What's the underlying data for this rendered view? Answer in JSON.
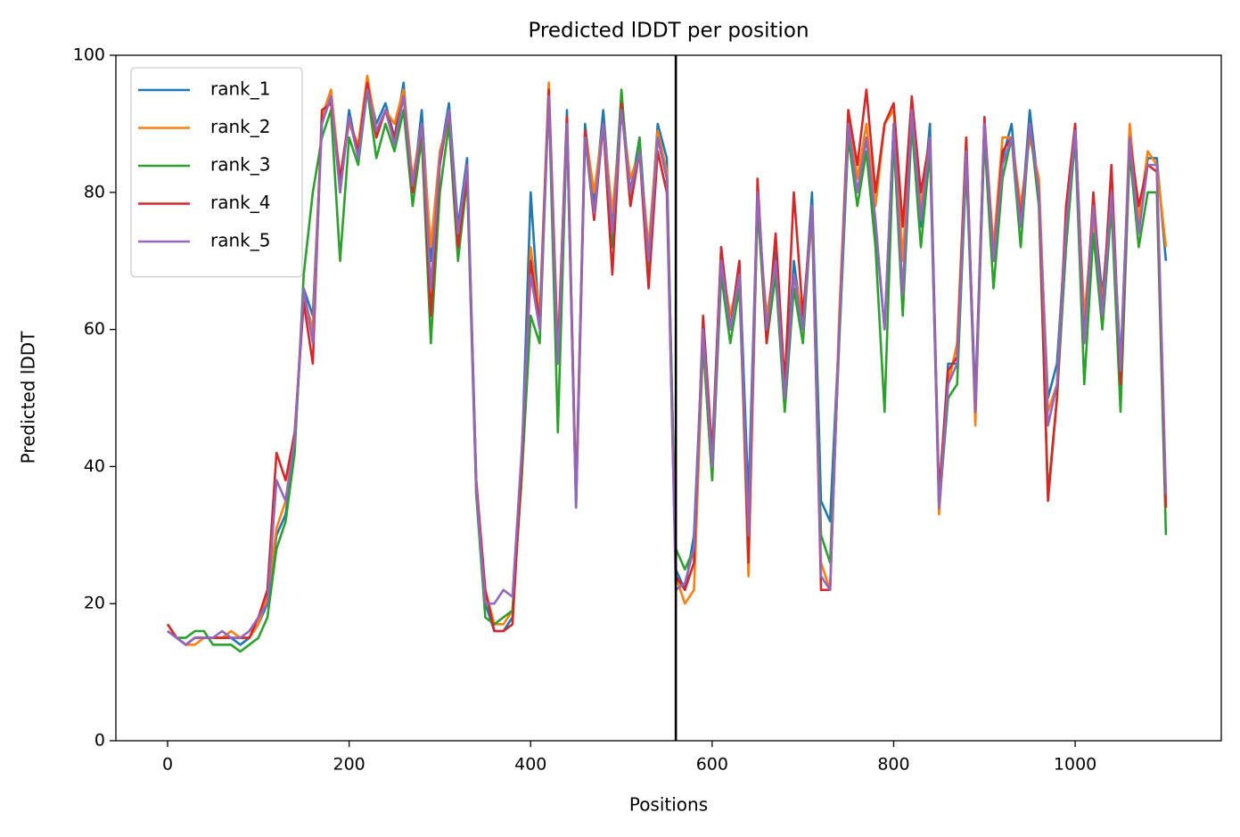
{
  "chart_data": {
    "type": "line",
    "title": "Predicted lDDT per position",
    "xlabel": "Positions",
    "ylabel": "Predicted lDDT",
    "x": [
      0,
      10,
      20,
      30,
      40,
      50,
      60,
      70,
      80,
      90,
      100,
      110,
      120,
      130,
      140,
      150,
      160,
      170,
      180,
      190,
      200,
      210,
      220,
      230,
      240,
      250,
      260,
      270,
      280,
      290,
      300,
      310,
      320,
      330,
      340,
      350,
      360,
      370,
      380,
      390,
      400,
      410,
      420,
      430,
      440,
      450,
      460,
      470,
      480,
      490,
      500,
      510,
      520,
      530,
      540,
      550,
      560,
      570,
      580,
      590,
      600,
      610,
      620,
      630,
      640,
      650,
      660,
      670,
      680,
      690,
      700,
      710,
      720,
      730,
      740,
      750,
      760,
      770,
      780,
      790,
      800,
      810,
      820,
      830,
      840,
      850,
      860,
      870,
      880,
      890,
      900,
      910,
      920,
      930,
      940,
      950,
      960,
      970,
      980,
      990,
      1000,
      1010,
      1020,
      1030,
      1040,
      1050,
      1060,
      1070,
      1080,
      1090,
      1100
    ],
    "series": [
      {
        "name": "rank_1",
        "color": "#1f77b4",
        "values": [
          16,
          15,
          14,
          15,
          15,
          15,
          15,
          15,
          14,
          15,
          17,
          20,
          30,
          33,
          43,
          66,
          62,
          90,
          94,
          80,
          92,
          85,
          96,
          90,
          93,
          88,
          96,
          80,
          92,
          70,
          85,
          93,
          75,
          85,
          38,
          20,
          16,
          16,
          18,
          40,
          80,
          60,
          95,
          55,
          92,
          35,
          90,
          78,
          92,
          75,
          94,
          80,
          88,
          70,
          90,
          85,
          25,
          22,
          30,
          60,
          40,
          72,
          60,
          70,
          35,
          80,
          60,
          72,
          50,
          70,
          60,
          80,
          35,
          32,
          60,
          90,
          80,
          88,
          75,
          60,
          90,
          65,
          92,
          75,
          90,
          35,
          55,
          55,
          85,
          50,
          90,
          70,
          85,
          90,
          75,
          92,
          80,
          50,
          55,
          75,
          90,
          60,
          78,
          65,
          80,
          55,
          88,
          75,
          85,
          85,
          70
        ]
      },
      {
        "name": "rank_2",
        "color": "#ff7f0e",
        "values": [
          17,
          15,
          14,
          14,
          15,
          15,
          15,
          16,
          15,
          15,
          17,
          21,
          31,
          35,
          45,
          65,
          60,
          91,
          95,
          82,
          90,
          87,
          97,
          89,
          92,
          90,
          95,
          82,
          90,
          72,
          86,
          91,
          73,
          84,
          36,
          22,
          17,
          17,
          19,
          38,
          72,
          62,
          96,
          57,
          91,
          36,
          89,
          80,
          90,
          77,
          92,
          82,
          86,
          72,
          89,
          83,
          24,
          20,
          22,
          58,
          38,
          70,
          62,
          68,
          24,
          78,
          62,
          70,
          48,
          68,
          62,
          76,
          26,
          22,
          62,
          92,
          82,
          90,
          78,
          90,
          92,
          70,
          93,
          78,
          88,
          33,
          52,
          58,
          88,
          46,
          90,
          72,
          88,
          88,
          78,
          88,
          82,
          48,
          52,
          76,
          88,
          62,
          76,
          64,
          80,
          52,
          90,
          76,
          86,
          84,
          72
        ]
      },
      {
        "name": "rank_3",
        "color": "#2ca02c",
        "values": [
          16,
          15,
          15,
          16,
          16,
          14,
          14,
          14,
          13,
          14,
          15,
          18,
          28,
          32,
          42,
          68,
          80,
          88,
          92,
          70,
          88,
          84,
          95,
          85,
          90,
          86,
          92,
          78,
          88,
          58,
          80,
          90,
          70,
          82,
          36,
          18,
          17,
          18,
          19,
          38,
          62,
          58,
          94,
          45,
          90,
          34,
          88,
          76,
          90,
          72,
          95,
          78,
          88,
          68,
          88,
          82,
          28,
          25,
          28,
          58,
          38,
          68,
          58,
          66,
          30,
          78,
          58,
          68,
          48,
          66,
          58,
          78,
          30,
          26,
          58,
          88,
          78,
          86,
          72,
          48,
          88,
          62,
          90,
          72,
          86,
          34,
          50,
          52,
          84,
          48,
          88,
          66,
          82,
          88,
          72,
          90,
          78,
          36,
          50,
          72,
          88,
          52,
          74,
          60,
          78,
          48,
          86,
          72,
          80,
          80,
          30
        ]
      },
      {
        "name": "rank_4",
        "color": "#d62728",
        "values": [
          17,
          15,
          14,
          15,
          15,
          15,
          15,
          15,
          15,
          15,
          18,
          22,
          42,
          38,
          45,
          64,
          55,
          92,
          93,
          82,
          91,
          86,
          96,
          88,
          92,
          88,
          94,
          80,
          90,
          62,
          84,
          92,
          72,
          83,
          38,
          22,
          16,
          16,
          17,
          40,
          70,
          61,
          95,
          56,
          91,
          35,
          89,
          76,
          90,
          68,
          93,
          78,
          86,
          66,
          86,
          80,
          24,
          22,
          26,
          62,
          42,
          72,
          60,
          70,
          26,
          82,
          58,
          74,
          52,
          80,
          62,
          78,
          22,
          22,
          60,
          92,
          84,
          95,
          80,
          90,
          93,
          75,
          94,
          80,
          88,
          36,
          54,
          56,
          88,
          48,
          91,
          70,
          86,
          88,
          76,
          90,
          80,
          35,
          50,
          78,
          90,
          58,
          80,
          62,
          84,
          52,
          88,
          78,
          84,
          83,
          34
        ]
      },
      {
        "name": "rank_5",
        "color": "#9467bd",
        "values": [
          16,
          15,
          14,
          15,
          15,
          15,
          16,
          15,
          15,
          16,
          18,
          20,
          38,
          35,
          44,
          66,
          58,
          90,
          94,
          80,
          91,
          85,
          95,
          89,
          92,
          87,
          94,
          81,
          90,
          66,
          85,
          92,
          74,
          84,
          37,
          20,
          20,
          22,
          21,
          42,
          68,
          60,
          94,
          55,
          90,
          34,
          88,
          77,
          90,
          74,
          92,
          80,
          86,
          70,
          88,
          82,
          22,
          23,
          28,
          60,
          40,
          70,
          60,
          68,
          30,
          80,
          60,
          70,
          50,
          68,
          60,
          78,
          24,
          22,
          60,
          90,
          80,
          88,
          76,
          60,
          90,
          65,
          92,
          76,
          88,
          34,
          52,
          55,
          86,
          48,
          90,
          70,
          84,
          88,
          75,
          90,
          80,
          46,
          52,
          75,
          89,
          58,
          78,
          62,
          80,
          54,
          88,
          74,
          84,
          84,
          36
        ]
      }
    ],
    "xlim": [
      -57,
      1161
    ],
    "ylim": [
      0,
      100
    ],
    "xticks": [
      0,
      200,
      400,
      600,
      800,
      1000
    ],
    "yticks": [
      0,
      20,
      40,
      60,
      80,
      100
    ],
    "vline": 560,
    "vline_color": "#000000",
    "legend": "upper left",
    "grid": false
  }
}
